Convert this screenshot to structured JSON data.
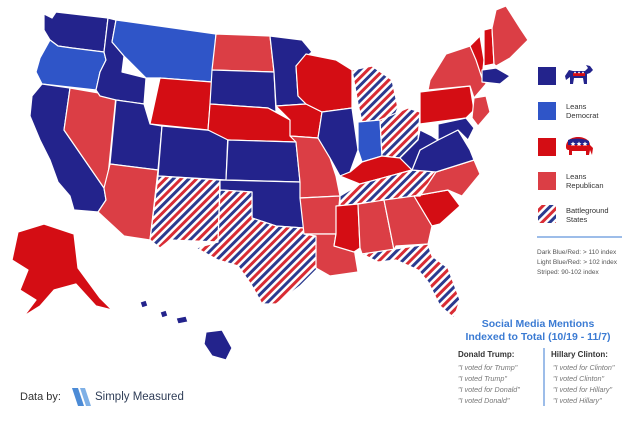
{
  "colors": {
    "dark_blue": "#23238c",
    "light_blue": "#2f55c8",
    "dark_red": "#d40d14",
    "light_red": "#db3e45",
    "stripe_blue": "#2b3a8f",
    "stripe_red": "#d92c34",
    "title_blue": "#3b7bd3",
    "logo_blue": "#4c8bd6"
  },
  "legend": {
    "items": [
      {
        "key": "dark_blue",
        "label": "",
        "icon": "democrat-donkey-icon"
      },
      {
        "key": "light_blue",
        "label": "Leans\nDemocrat",
        "icon": ""
      },
      {
        "key": "dark_red",
        "label": "",
        "icon": "republican-elephant-icon"
      },
      {
        "key": "light_red",
        "label": "Leans\nRepublican",
        "icon": ""
      },
      {
        "key": "striped",
        "label": "Battleground\nStates",
        "icon": ""
      }
    ],
    "notes": [
      "Dark Blue/Red: > 110 index",
      "Light Blue/Red: > 102 index",
      "Striped: 90-102 index"
    ]
  },
  "mentions": {
    "title_line1": "Social Media Mentions",
    "title_line2": "Indexed to Total (10/19 - 11/7)",
    "trump": {
      "header": "Donald Trump:",
      "quotes": [
        "\"I voted for Trump\"",
        "\"I voted Trump\"",
        "\"I voted for Donald\"",
        "\"I voted Donald\""
      ]
    },
    "clinton": {
      "header": "Hillary Clinton:",
      "quotes": [
        "\"I voted for Clinton\"",
        "\"I voted Clinton\"",
        "\"I voted for Hillary\"",
        "\"I voted Hillary\""
      ]
    }
  },
  "footer": {
    "data_by": "Data by:",
    "brand": "Simply Measured"
  },
  "states": [
    {
      "name": "WA",
      "category": "dark_blue"
    },
    {
      "name": "OR",
      "category": "light_blue"
    },
    {
      "name": "CA",
      "category": "dark_blue"
    },
    {
      "name": "NV",
      "category": "light_red"
    },
    {
      "name": "ID",
      "category": "dark_blue"
    },
    {
      "name": "MT",
      "category": "light_blue"
    },
    {
      "name": "WY",
      "category": "dark_red"
    },
    {
      "name": "UT",
      "category": "dark_blue"
    },
    {
      "name": "AZ",
      "category": "light_red"
    },
    {
      "name": "CO",
      "category": "dark_blue"
    },
    {
      "name": "NM",
      "category": "striped"
    },
    {
      "name": "ND",
      "category": "light_red"
    },
    {
      "name": "SD",
      "category": "dark_blue"
    },
    {
      "name": "NE",
      "category": "dark_red"
    },
    {
      "name": "KS",
      "category": "dark_blue"
    },
    {
      "name": "OK",
      "category": "dark_blue"
    },
    {
      "name": "TX",
      "category": "striped"
    },
    {
      "name": "MN",
      "category": "dark_blue"
    },
    {
      "name": "IA",
      "category": "dark_red"
    },
    {
      "name": "MO",
      "category": "light_red"
    },
    {
      "name": "AR",
      "category": "light_red"
    },
    {
      "name": "LA",
      "category": "light_red"
    },
    {
      "name": "WI",
      "category": "dark_red"
    },
    {
      "name": "IL",
      "category": "dark_blue"
    },
    {
      "name": "MI",
      "category": "striped"
    },
    {
      "name": "IN",
      "category": "light_blue"
    },
    {
      "name": "OH",
      "category": "striped"
    },
    {
      "name": "KY",
      "category": "dark_red"
    },
    {
      "name": "TN",
      "category": "striped"
    },
    {
      "name": "MS",
      "category": "dark_red"
    },
    {
      "name": "AL",
      "category": "light_red"
    },
    {
      "name": "GA",
      "category": "light_red"
    },
    {
      "name": "FL",
      "category": "striped"
    },
    {
      "name": "SC",
      "category": "dark_red"
    },
    {
      "name": "NC",
      "category": "light_red"
    },
    {
      "name": "VA",
      "category": "dark_blue"
    },
    {
      "name": "WV",
      "category": "dark_blue"
    },
    {
      "name": "PA",
      "category": "dark_red"
    },
    {
      "name": "NY",
      "category": "light_red"
    },
    {
      "name": "VT",
      "category": "dark_red"
    },
    {
      "name": "NH",
      "category": "dark_red"
    },
    {
      "name": "ME",
      "category": "light_red"
    },
    {
      "name": "MA",
      "category": "dark_blue"
    },
    {
      "name": "NJ",
      "category": "light_red"
    },
    {
      "name": "MD",
      "category": "dark_blue"
    },
    {
      "name": "AK",
      "category": "dark_red"
    },
    {
      "name": "HI",
      "category": "dark_blue"
    }
  ]
}
